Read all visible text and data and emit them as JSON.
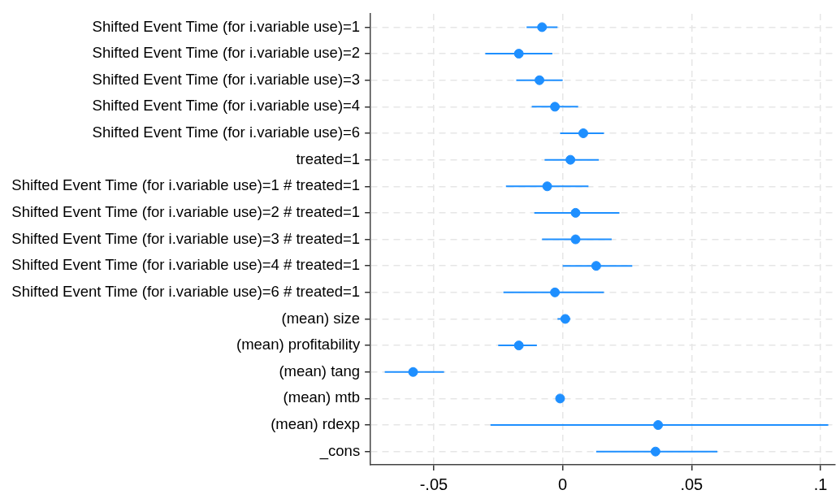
{
  "chart_data": {
    "type": "scatter",
    "orientation": "horizontal",
    "categories": [
      "Shifted Event Time (for i.variable use)=1",
      "Shifted Event Time (for i.variable use)=2",
      "Shifted Event Time (for i.variable use)=3",
      "Shifted Event Time (for i.variable use)=4",
      "Shifted Event Time (for i.variable use)=6",
      "treated=1",
      "Shifted Event Time (for i.variable use)=1 # treated=1",
      "Shifted Event Time (for i.variable use)=2 # treated=1",
      "Shifted Event Time (for i.variable use)=3 # treated=1",
      "Shifted Event Time (for i.variable use)=4 # treated=1",
      "Shifted Event Time (for i.variable use)=6 # treated=1",
      "(mean) size",
      "(mean) profitability",
      "(mean) tang",
      "(mean) mtb",
      "(mean) rdexp",
      "_cons"
    ],
    "values": [
      -0.008,
      -0.017,
      -0.009,
      -0.003,
      0.008,
      0.003,
      -0.006,
      0.005,
      0.005,
      0.013,
      -0.003,
      0.001,
      -0.017,
      -0.058,
      -0.001,
      0.037,
      0.036
    ],
    "errors": [
      [
        -0.014,
        -0.002
      ],
      [
        -0.03,
        -0.004
      ],
      [
        -0.018,
        0.0
      ],
      [
        -0.012,
        0.006
      ],
      [
        -0.001,
        0.016
      ],
      [
        -0.007,
        0.014
      ],
      [
        -0.022,
        0.01
      ],
      [
        -0.011,
        0.022
      ],
      [
        -0.008,
        0.019
      ],
      [
        0.0,
        0.027
      ],
      [
        -0.023,
        0.016
      ],
      [
        -0.002,
        0.003
      ],
      [
        -0.025,
        -0.01
      ],
      [
        -0.069,
        -0.046
      ],
      null,
      [
        -0.028,
        0.103
      ],
      [
        0.013,
        0.06
      ]
    ],
    "color": "#1e8fff",
    "marker": "circle",
    "xlim": [
      -0.0745,
      0.1055
    ],
    "xticks": [
      {
        "value": -0.05,
        "label": "-.05"
      },
      0,
      {
        "value": 0.05,
        "label": ".05"
      },
      {
        "value": 0.1,
        "label": ".1"
      }
    ],
    "grid": true,
    "legend": false
  }
}
